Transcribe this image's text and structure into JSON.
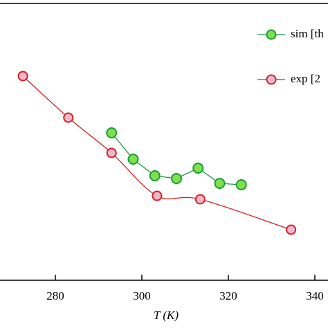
{
  "chart_data": {
    "type": "line",
    "xlabel": "T (K)",
    "x_sim": [
      293,
      298,
      303,
      308,
      313,
      318,
      323
    ],
    "x_exp": [
      272.5,
      283,
      293,
      303.5,
      313.5,
      334.5
    ],
    "series": [
      {
        "name": "sim [th",
        "color": "#1a9a3a",
        "fill": "#7ee04a",
        "values": [
          53.25,
          43.75,
          37.75,
          36.75,
          40.5,
          35,
          34.5
        ]
      },
      {
        "name": "exp [2",
        "color": "#d42020",
        "fill": "#f4b6cc",
        "values": [
          73.75,
          58.75,
          46,
          30.5,
          29.25,
          18.25
        ]
      }
    ],
    "xlim": [
      267.2,
      343.04
    ],
    "xticks": [
      280,
      300,
      320,
      340
    ],
    "ylim": [
      0,
      100
    ]
  }
}
